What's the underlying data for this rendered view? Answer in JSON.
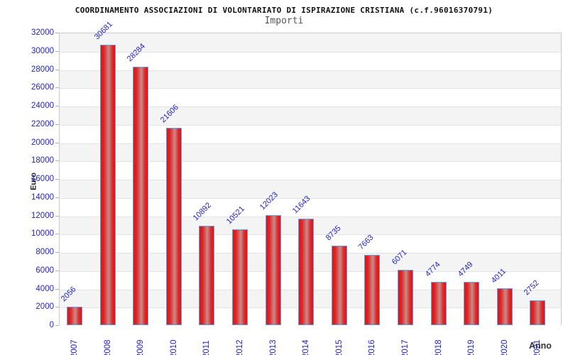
{
  "chart_data": {
    "type": "bar",
    "title": "COORDINAMENTO ASSOCIAZIONI DI VOLONTARIATO DI ISPIRAZIONE CRISTIANA (c.f.96016370791)",
    "subtitle": "Importi",
    "ylabel": "Euro",
    "xlabel": "Anno",
    "categories": [
      "2007",
      "2008",
      "2009",
      "2010",
      "2011",
      "2012",
      "2013",
      "2014",
      "2015",
      "2016",
      "2017",
      "2018",
      "2019",
      "2020",
      "2021"
    ],
    "values": [
      2056,
      30681,
      28284,
      21606,
      10892,
      10521,
      12023,
      11643,
      8735,
      7663,
      6071,
      4774,
      4749,
      4011,
      2752
    ],
    "ylim": [
      0,
      32000
    ],
    "ytick_step": 2000,
    "grid": "horizontal-bands-alternating",
    "legend_position": "none",
    "colors": {
      "bar_edge": "#5ca4ea",
      "bar_fill_dark": "#e51313",
      "bar_fill_light": "#c98b8b",
      "axis_label_text": "#2222cc",
      "band_gray": "#f4f4f4",
      "band_white": "#ffffff",
      "grid_line": "#e3e3e3",
      "title_text": "#111111",
      "subtitle_text": "#555555",
      "axis_title_text": "#222222"
    }
  }
}
